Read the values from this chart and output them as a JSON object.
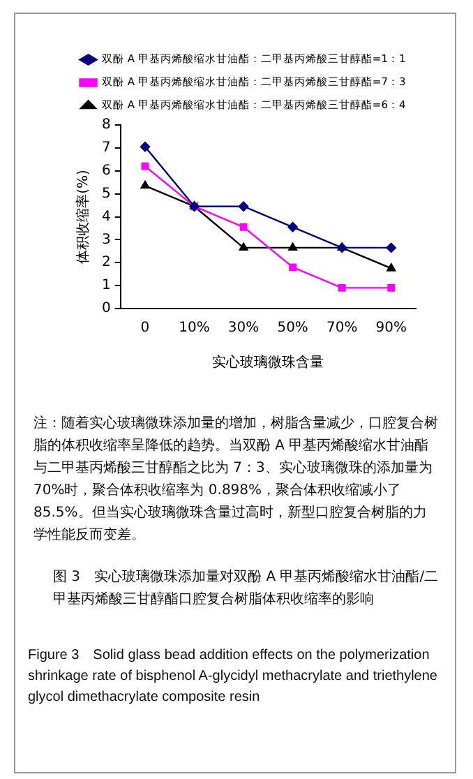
{
  "chart_data": {
    "type": "line",
    "categories": [
      "0",
      "10%",
      "30%",
      "50%",
      "70%",
      "90%"
    ],
    "xlabel": "实心玻璃微珠含量",
    "ylabel": "体积收缩率(%)",
    "ylim": [
      0,
      8
    ],
    "yticks": [
      0,
      1,
      2,
      3,
      4,
      5,
      6,
      7,
      8
    ],
    "grid": false,
    "legend": "top",
    "series": [
      {
        "name": "双酚 A 甲基丙烯酸缩水甘油酯：二甲基丙烯酸三甘醇酯=1：1",
        "color": "#000080",
        "marker": "diamond",
        "values": [
          7.05,
          4.45,
          4.45,
          3.55,
          2.65,
          2.65
        ]
      },
      {
        "name": "双酚 A 甲基丙烯酸缩水甘油酯：二甲基丙烯酸三甘醇酯=7：3",
        "color": "#ff00ff",
        "marker": "square",
        "values": [
          6.2,
          4.45,
          3.55,
          1.8,
          0.9,
          0.9
        ]
      },
      {
        "name": "双酚 A 甲基丙烯酸缩水甘油酯：二甲基丙烯酸三甘醇酯=6：4",
        "color": "#000000",
        "marker": "triangle",
        "values": [
          5.35,
          4.45,
          2.65,
          2.65,
          2.65,
          1.75
        ]
      }
    ],
    "annotations": [
      "注：随着实心玻璃微珠添加量的增加，树脂含量减少，口腔复合树脂的体积收缩率呈降低的趋势。当双酚 A 甲基丙烯酸缩水甘油酯与二甲基丙烯酸三甘醇酯之比为 7：3、实心玻璃微珠的添加量为 70%时，聚合体积收缩率为 0.898%，聚合体积收缩减小了 85.5%。但当实心玻璃微珠含量过高时，新型口腔复合树脂的力学性能反而变差。",
      "图 3　实心玻璃微珠添加量对双酚 A 甲基丙烯酸缩水甘油酯/二甲基丙烯酸三甘醇酯口腔复合树脂体积收缩率的影响",
      "Figure 3　Solid glass bead addition effects on the polymerization shrinkage rate of bisphenol A-glycidyl methacrylate and triethylene glycol dimethacrylate composite resin"
    ]
  }
}
